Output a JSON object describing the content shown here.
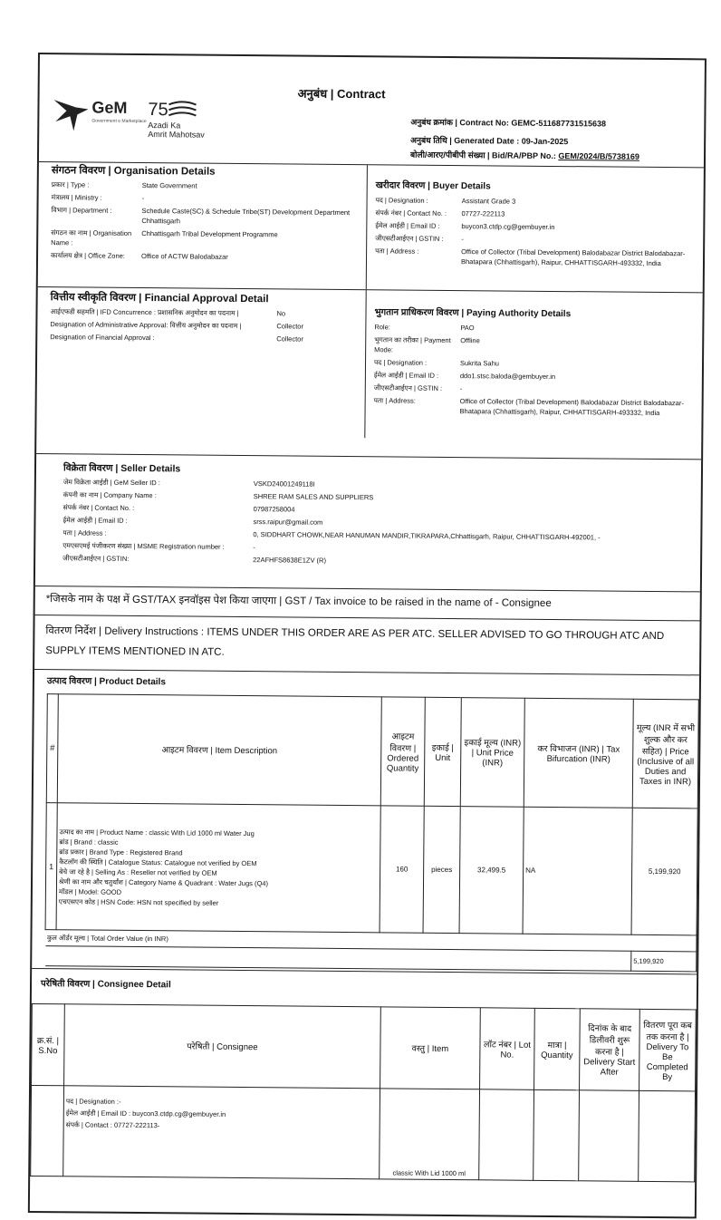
{
  "header": {
    "title": "अनुबंध | Contract",
    "contract_no": "अनुबंध क्रमांक | Contract No: GEMC-511687731515638",
    "generated_date": "अनुबंध तिथि | Generated Date : 09-Jan-2025",
    "bid_label": "बोली/आरए/पीबीपी संख्या | Bid/RA/PBP No.: ",
    "bid_no": "GEM/2024/B/5738169",
    "logo_text": "GeM Azadi Ka Amrit Mahotsav"
  },
  "organisation": {
    "title": "संगठन विवरण | Organisation Details",
    "rows": [
      {
        "label": "प्रकार | Type :",
        "value": "State Government"
      },
      {
        "label": "मंत्रालय | Ministry :",
        "value": "-"
      },
      {
        "label": "विभाग | Department :",
        "value": "Schedule Caste(SC) & Schedule Tribe(ST) Development Department Chhattisgarh"
      },
      {
        "label": "संगठन का नाम | Organisation Name :",
        "value": "Chhattisgarh Tribal Development Programme"
      },
      {
        "label": "कार्यालय क्षेत्र | Office Zone:",
        "value": "Office of ACTW Balodabazar"
      }
    ]
  },
  "buyer": {
    "title": "खरीदार विवरण | Buyer Details",
    "rows": [
      {
        "label": "पद | Designation :",
        "value": "Assistant Grade 3"
      },
      {
        "label": "संपर्क नंबर | Contact No. :",
        "value": "07727-222113"
      },
      {
        "label": "ईमेल आईडी | Email ID :",
        "value": "buycon3.ctdp.cg@gembuyer.in"
      },
      {
        "label": "जीएसटीआईएन | GSTIN :",
        "value": "-"
      },
      {
        "label": "पता | Address :",
        "value": "Office of Collector (Tribal Development) Balodabazar District Balodabazar- Bhatapara (Chhattisgarh), Raipur, CHHATTISGARH-493332, India"
      }
    ]
  },
  "financial": {
    "title": "वित्तीय स्वीकृति विवरण | Financial Approval Detail",
    "rows": [
      {
        "label": "आईएफडी सहमति | IFD Concurrence : प्रशासनिक अनुमोदन का पदनाम |",
        "value": "No"
      },
      {
        "label": "Designation of Administrative Approval: वित्तीय अनुमोदन का पदनाम |",
        "value": "Collector"
      },
      {
        "label": "Designation of Financial Approval :",
        "value": "Collector"
      }
    ]
  },
  "paying": {
    "title": "भुगतान प्राधिकरण विवरण | Paying Authority Details",
    "rows": [
      {
        "label": "Role:",
        "value": "PAO"
      },
      {
        "label": "भुगतान का तरीका | Payment Mode:",
        "value": "Offline"
      },
      {
        "label": "पद | Designation :",
        "value": "Sukrita Sahu"
      },
      {
        "label": "ईमेल आईडी | Email ID :",
        "value": "ddo1.stsc.baloda@gembuyer.in"
      },
      {
        "label": "जीएसटीआईएन | GSTIN :",
        "value": "-"
      },
      {
        "label": "पता | Address:",
        "value": "Office of Collector (Tribal Development) Balodabazar District Balodabazar- Bhatapara (Chhattisgarh), Raipur, CHHATTISGARH-493332, India"
      }
    ]
  },
  "seller": {
    "title": "विक्रेता विवरण | Seller Details",
    "rows": [
      {
        "label": "जेम विक्रेता आईडी | GeM Seller ID :",
        "value": "VSKD24001249118I"
      },
      {
        "label": "कंपनी का नाम | Company Name :",
        "value": "SHREE RAM SALES AND SUPPLIERS"
      },
      {
        "label": "संपर्क नंबर | Contact No. :",
        "value": "07987258004"
      },
      {
        "label": "ईमेल आईडी | Email ID :",
        "value": "srss.raipur@gmail.com"
      },
      {
        "label": "पता | Address :",
        "value": "0, SIDDHART CHOWK,NEAR HANUMAN MANDIR,TIKRAPARA,Chhattisgarh, Raipur, CHHATTISGARH-492001, -"
      },
      {
        "label": "एमएसएमई पंजीकरण संख्या | MSME Registration number :",
        "value": "-"
      },
      {
        "label": "जीएसटीआईएन | GSTIN:",
        "value": "22AFHFS8638E1ZV (R)"
      }
    ]
  },
  "gst_note": "*जिसके नाम के पक्ष में GST/TAX इनवॉइस पेश किया जाएगा | GST / Tax invoice to be raised in the name of - Consignee",
  "delivery_instructions": "वितरण निर्देश | Delivery Instructions : ITEMS UNDER THIS ORDER ARE AS PER ATC. SELLER ADVISED TO GO THROUGH ATC AND SUPPLY ITEMS MENTIONED IN ATC.",
  "products": {
    "title": "उत्पाद विवरण | Product Details",
    "headers": [
      "#",
      "आइटम विवरण | Item Description",
      "आइटम विवरण | Ordered Quantity",
      "इकाई | Unit",
      "इकाई मूल्य (INR) | Unit Price (INR)",
      "कर विभाजन (INR) | Tax Bifurcation (INR)",
      "मूल्य (INR में सभी शुल्क और कर सहित) | Price (Inclusive of all Duties and Taxes in INR)"
    ],
    "rows": [
      {
        "num": "1",
        "desc": [
          "उत्पाद का नाम | Product Name : classic With Lid 1000 ml Water Jug",
          "ब्रांड | Brand : classic",
          "ब्रांड प्रकार | Brand Type : Registered Brand",
          "कैटलॉग की स्थिति | Catalogue Status: Catalogue not verified by OEM",
          "बेचे जा रहे है | Selling As : Reseller not verified by OEM",
          "श्रेणी का नाम और चतुर्थांश | Category Name & Quadrant : Water Jugs (Q4)",
          "मॉडल | Model: GOOD",
          "एचएसएन कोड | HSN Code: HSN not specified by seller"
        ],
        "qty": "160",
        "unit": "pieces",
        "unit_price": "32,499.5",
        "tax": "NA",
        "price": "5,199,920"
      }
    ],
    "total_label": "कुल ऑर्डर मूल्य | Total Order Value (in INR)",
    "total_value": "5,199,920"
  },
  "consignee": {
    "title": "परेषिती विवरण | Consignee Detail",
    "headers": [
      "क्र.सं. | S.No",
      "परेषिती | Consignee",
      "वस्तु | Item",
      "लॉट नंबर | Lot No.",
      "मात्रा | Quantity",
      "दिनांक के बाद डिलीवरी शुरू करना है | Delivery Start After",
      "वितरण पूरा कब तक करना है | Delivery To Be Completed By"
    ],
    "rows": [
      {
        "sno": "",
        "designation": "पद | Designation :-",
        "email": "ईमेल आईडी | Email ID : buycon3.ctdp.cg@gembuyer.in",
        "contact": "संपर्क | Contact : 07727-222113-",
        "item": "classic With Lid 1000 ml",
        "lot": "",
        "qty": "",
        "start": "",
        "end": ""
      }
    ]
  }
}
